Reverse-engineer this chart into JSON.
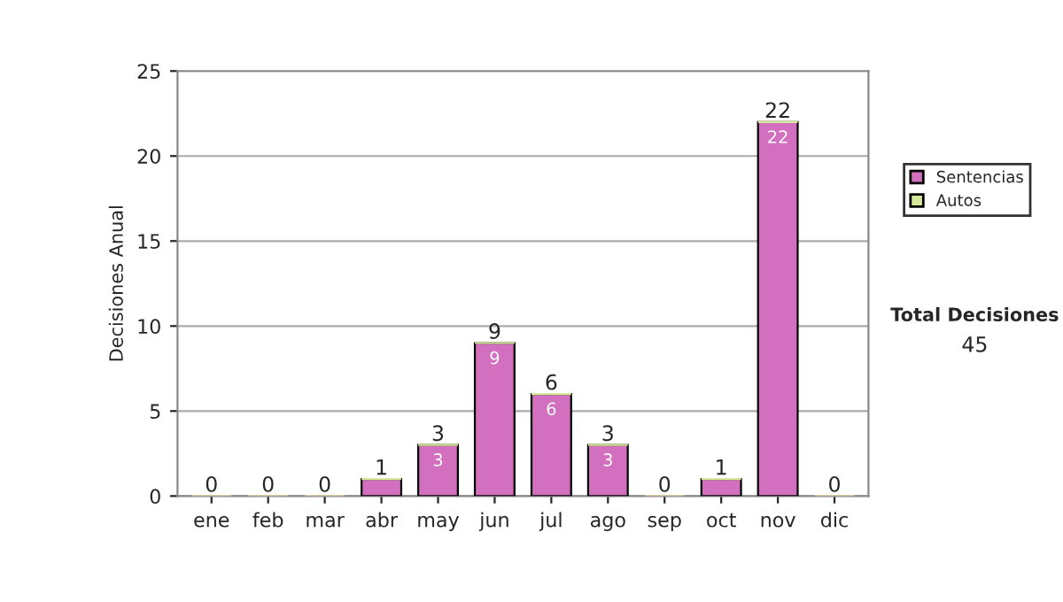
{
  "chart_data": {
    "type": "bar",
    "stacked": true,
    "ylabel": "Decisiones Anual",
    "categories": [
      "ene",
      "feb",
      "mar",
      "abr",
      "may",
      "jun",
      "jul",
      "ago",
      "sep",
      "oct",
      "nov",
      "dic"
    ],
    "series": [
      {
        "name": "Sentencias",
        "color": "#d36fbf",
        "values": [
          0,
          0,
          0,
          1,
          3,
          9,
          6,
          3,
          0,
          1,
          22,
          0
        ],
        "value_labels": [
          null,
          null,
          null,
          null,
          "3",
          "9",
          "6",
          "3",
          null,
          null,
          "22",
          null
        ]
      },
      {
        "name": "Autos",
        "color": "#d6e89a",
        "values": [
          0,
          0,
          0,
          0,
          0,
          0,
          0,
          0,
          0,
          0,
          0,
          0
        ]
      }
    ],
    "totals": [
      "0",
      "0",
      "0",
      "1",
      "3",
      "9",
      "6",
      "3",
      "0",
      "1",
      "22",
      "0"
    ],
    "ylim": [
      0,
      25
    ],
    "yticks": [
      0,
      5,
      10,
      15,
      20,
      25
    ],
    "grid": "y",
    "legend": "right",
    "annotations": [
      "Total Decisiones",
      "45"
    ]
  }
}
